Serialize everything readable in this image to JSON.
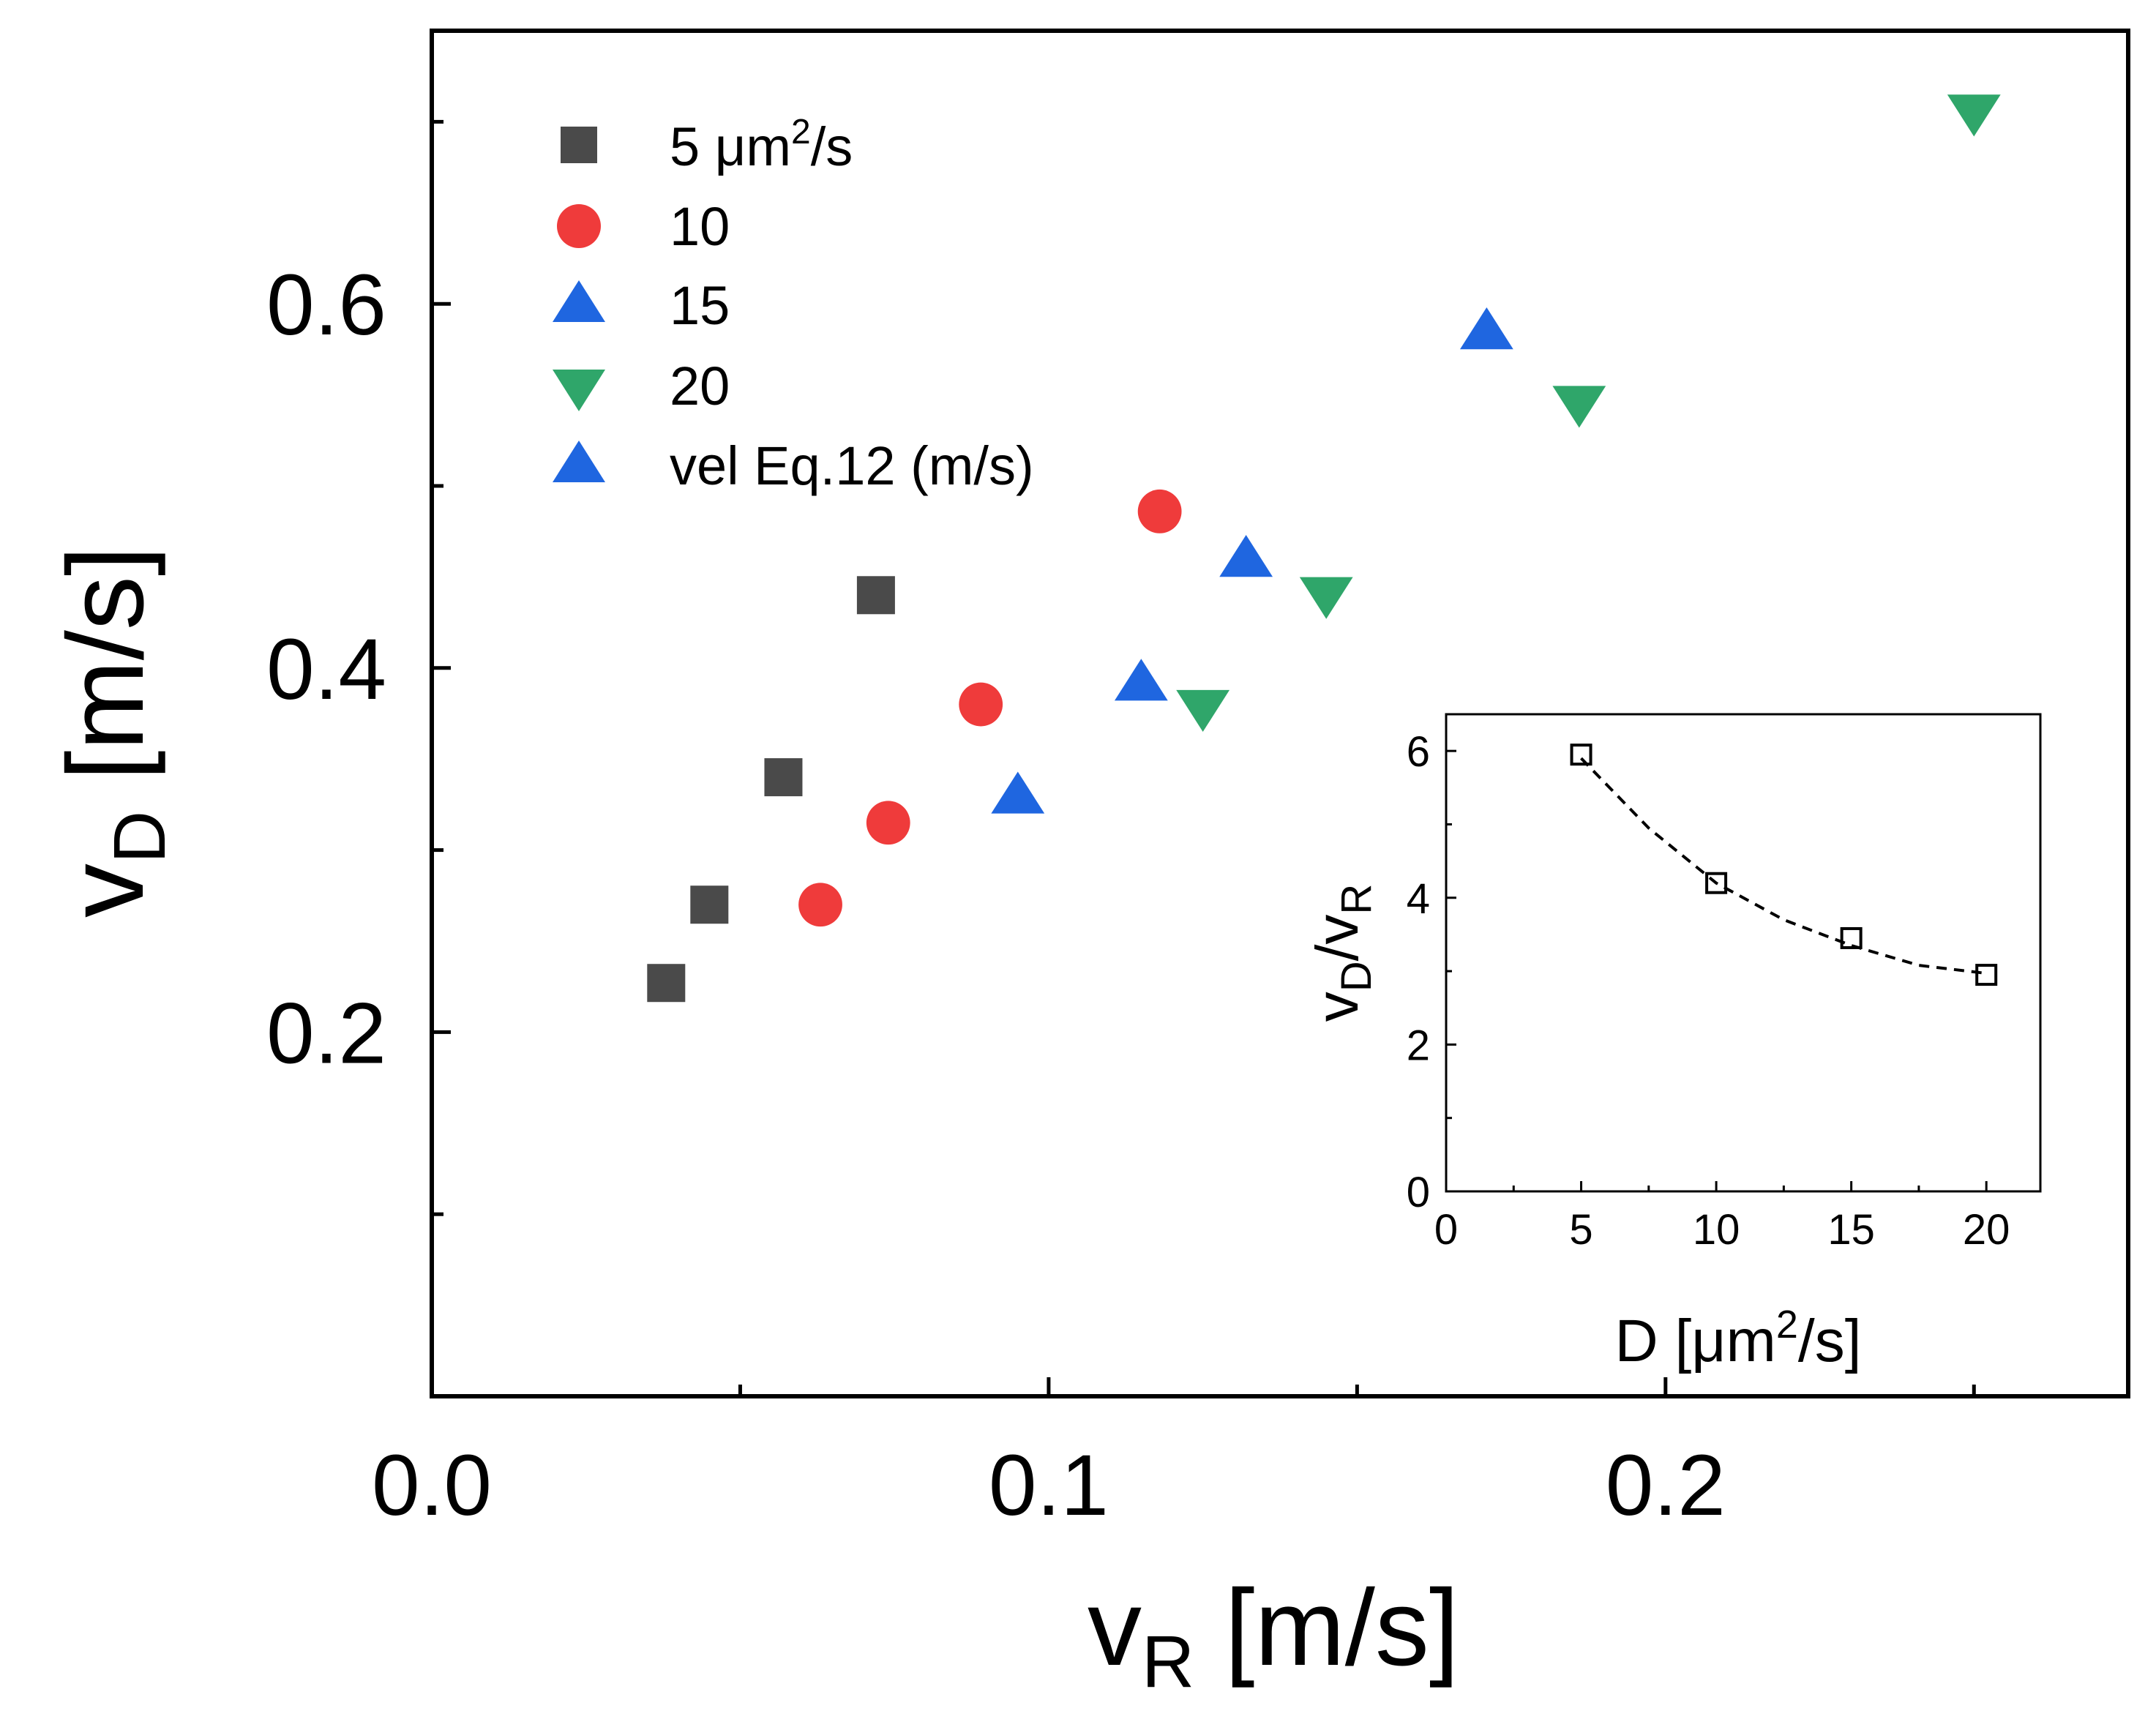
{
  "chart_data": [
    {
      "type": "scatter",
      "ylabel": {
        "main": "v",
        "sub": "D",
        "unit": " [m/s]"
      },
      "xlabel": {
        "main": "v",
        "sub": "R",
        "unit": " [m/s]"
      },
      "xlim": [
        0,
        0.275
      ],
      "ylim": [
        0,
        0.75
      ],
      "xticks": [
        {
          "value": 0.0,
          "label": "0.0"
        },
        {
          "value": 0.1,
          "label": "0.1"
        },
        {
          "value": 0.2,
          "label": "0.2"
        }
      ],
      "yticks": [
        {
          "value": 0.2,
          "label": "0.2"
        },
        {
          "value": 0.4,
          "label": "0.4"
        },
        {
          "value": 0.6,
          "label": "0.6"
        }
      ],
      "legend_position": "top-left",
      "series": [
        {
          "name": "5 μm²/s",
          "legend": {
            "prefix": "5 μm",
            "sup": "2",
            "suffix": "/s"
          },
          "marker": "square",
          "color": "#4a4a4a",
          "points": [
            {
              "x": 0.038,
              "y": 0.227
            },
            {
              "x": 0.045,
              "y": 0.27
            },
            {
              "x": 0.057,
              "y": 0.34
            },
            {
              "x": 0.072,
              "y": 0.44
            }
          ]
        },
        {
          "name": "10",
          "legend": {
            "prefix": "10"
          },
          "marker": "circle",
          "color": "#ef3b3b",
          "points": [
            {
              "x": 0.063,
              "y": 0.27
            },
            {
              "x": 0.074,
              "y": 0.315
            },
            {
              "x": 0.089,
              "y": 0.38
            },
            {
              "x": 0.118,
              "y": 0.486
            }
          ]
        },
        {
          "name": "15",
          "legend": {
            "prefix": "15"
          },
          "marker": "triangle-up",
          "color": "#1f66e0",
          "points": [
            {
              "x": 0.095,
              "y": 0.33
            },
            {
              "x": 0.115,
              "y": 0.392
            },
            {
              "x": 0.132,
              "y": 0.46
            },
            {
              "x": 0.171,
              "y": 0.585
            }
          ]
        },
        {
          "name": "20",
          "legend": {
            "prefix": "20"
          },
          "marker": "triangle-down",
          "color": "#2fa66a",
          "points": [
            {
              "x": 0.125,
              "y": 0.378
            },
            {
              "x": 0.145,
              "y": 0.44
            },
            {
              "x": 0.186,
              "y": 0.545
            },
            {
              "x": 0.25,
              "y": 0.705
            }
          ]
        },
        {
          "name": "vel Eq.12 (m/s)",
          "legend": {
            "prefix": "vel Eq.12 (m/s)"
          },
          "marker": "triangle-up",
          "color": "#1f66e0",
          "points": []
        }
      ]
    },
    {
      "type": "scatter",
      "role": "inset",
      "ylabel": {
        "main": "v",
        "sub1": "D",
        "mid": "/v",
        "sub2": "R"
      },
      "xlabel": {
        "prefix": "D [μm",
        "sup": "2",
        "suffix": "/s]"
      },
      "xlim": [
        0,
        22
      ],
      "ylim": [
        0,
        6.5
      ],
      "xticks": [
        {
          "value": 0,
          "label": "0"
        },
        {
          "value": 5,
          "label": "5"
        },
        {
          "value": 10,
          "label": "10"
        },
        {
          "value": 15,
          "label": "15"
        },
        {
          "value": 20,
          "label": "20"
        }
      ],
      "yticks": [
        {
          "value": 0,
          "label": "0"
        },
        {
          "value": 2,
          "label": "2"
        },
        {
          "value": 4,
          "label": "4"
        },
        {
          "value": 6,
          "label": "6"
        }
      ],
      "series": [
        {
          "marker": "open-square",
          "color": "#000000",
          "points": [
            {
              "x": 5,
              "y": 5.95
            },
            {
              "x": 10,
              "y": 4.2
            },
            {
              "x": 15,
              "y": 3.45
            },
            {
              "x": 20,
              "y": 2.95
            }
          ],
          "fit": {
            "style": "dashed",
            "x": [
              5,
              7.5,
              10,
              12.5,
              15,
              17.5,
              20
            ],
            "y": [
              5.9,
              4.95,
              4.2,
              3.7,
              3.35,
              3.08,
              2.97
            ]
          }
        }
      ]
    }
  ]
}
